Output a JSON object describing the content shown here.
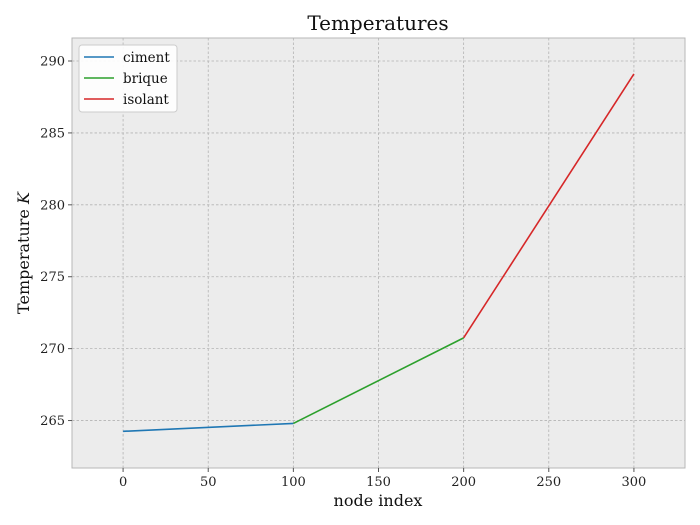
{
  "chart_data": {
    "type": "line",
    "title": "Temperatures",
    "xlabel": "node index",
    "ylabel_text": "Temperature",
    "ylabel_unit": "K",
    "xlim": [
      -30,
      330
    ],
    "ylim": [
      261.7,
      291.6
    ],
    "x_ticks": [
      0,
      50,
      100,
      150,
      200,
      250,
      300
    ],
    "y_ticks": [
      265,
      270,
      275,
      280,
      285,
      290
    ],
    "grid": true,
    "legend_position": "top-left",
    "series": [
      {
        "name": "ciment",
        "color": "#1f77b4",
        "points": [
          [
            0,
            264.25
          ],
          [
            100,
            264.8
          ]
        ]
      },
      {
        "name": "brique",
        "color": "#2ca02c",
        "points": [
          [
            100,
            264.8
          ],
          [
            200,
            270.75
          ]
        ]
      },
      {
        "name": "isolant",
        "color": "#d62728",
        "points": [
          [
            200,
            270.75
          ],
          [
            300,
            289.1
          ]
        ]
      }
    ]
  }
}
